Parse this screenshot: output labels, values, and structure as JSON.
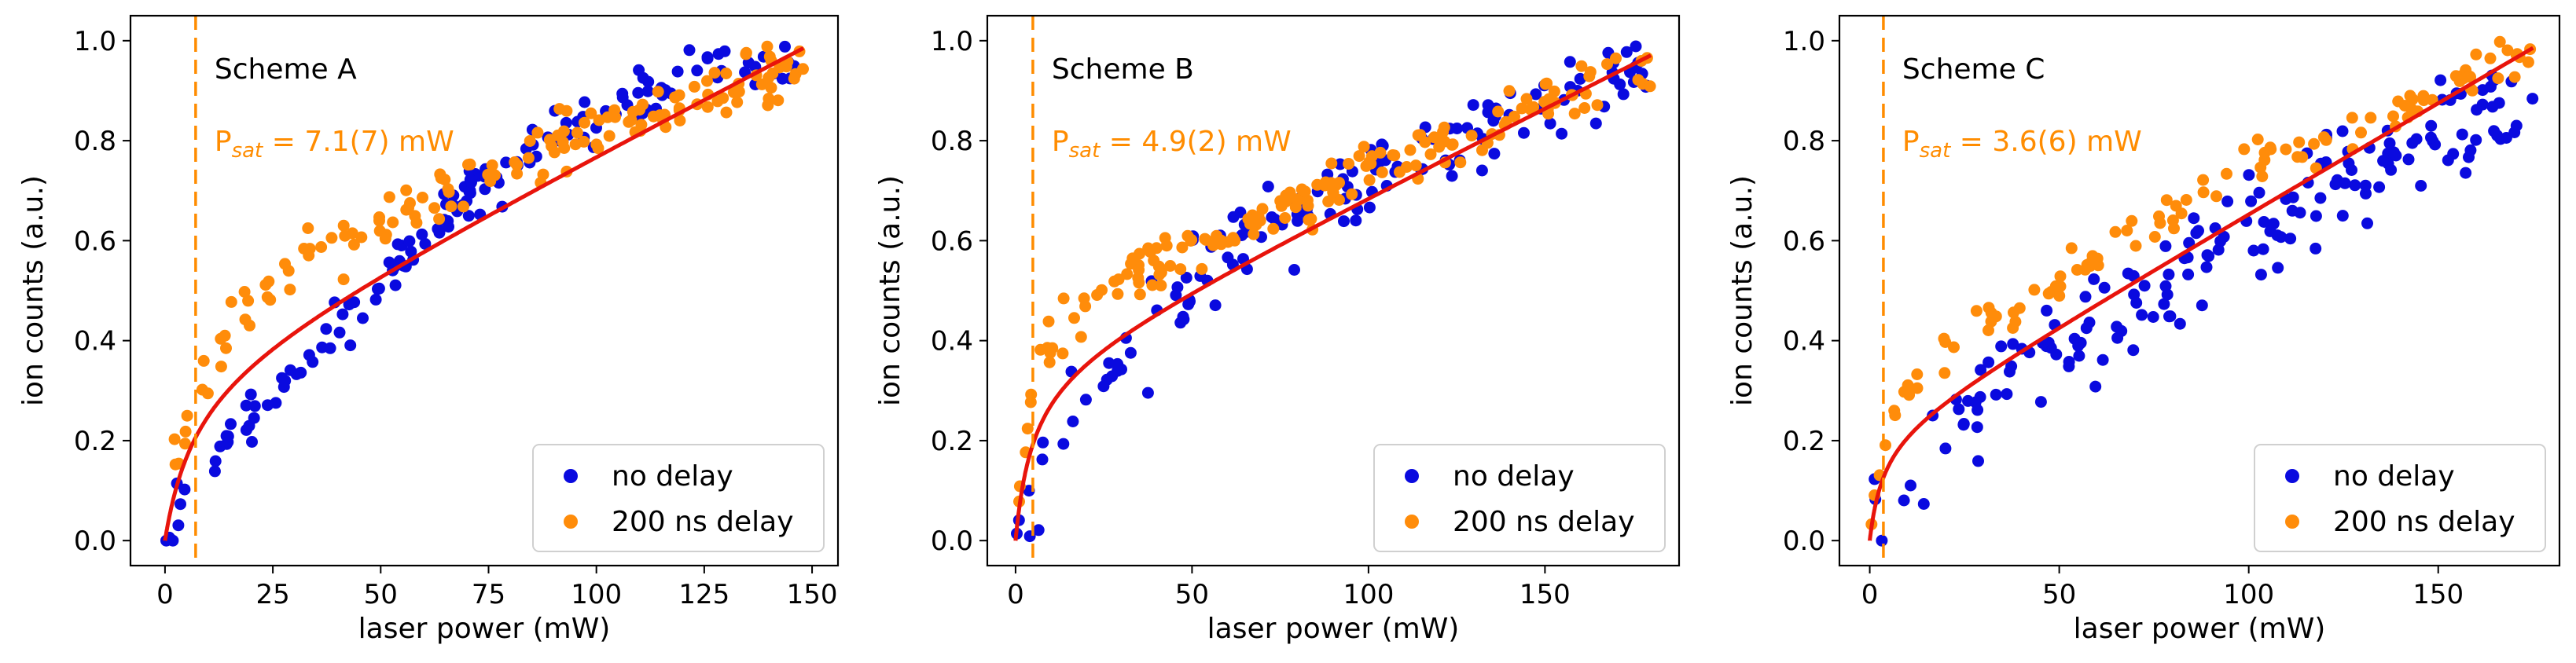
{
  "colors": {
    "no_delay": "#0a0adf",
    "delay": "#ff8c0a",
    "fit": "#e8140c",
    "psat_line": "#ff8c00"
  },
  "chart_data": [
    {
      "type": "scatter",
      "title": "Scheme A",
      "annotation": {
        "prefix": "P",
        "subscript": "sat",
        "value": " = 7.1(7) mW",
        "psat": 7.1
      },
      "xlabel": "laser power (mW)",
      "ylabel": "ion counts (a.u.)",
      "xlim": [
        -8,
        156
      ],
      "ylim": [
        -0.05,
        1.05
      ],
      "xticks": [
        0,
        25,
        50,
        75,
        100,
        125,
        150
      ],
      "xtick_labels": [
        "0",
        "25",
        "50",
        "75",
        "100",
        "125",
        "150"
      ],
      "yticks": [
        0.0,
        0.2,
        0.4,
        0.6,
        0.8,
        1.0
      ],
      "ytick_labels": [
        "0.0",
        "0.2",
        "0.4",
        "0.6",
        "0.8",
        "1.0"
      ],
      "x_max": 148,
      "series": [
        {
          "name": "no delay",
          "anchors": [
            [
              0,
              0
            ],
            [
              2,
              0.05
            ],
            [
              10,
              0.16
            ],
            [
              25,
              0.3
            ],
            [
              40,
              0.43
            ],
            [
              55,
              0.57
            ],
            [
              70,
              0.69
            ],
            [
              90,
              0.81
            ],
            [
              110,
              0.88
            ],
            [
              125,
              0.96
            ],
            [
              140,
              0.95
            ]
          ],
          "noise": 0.025,
          "n": 150,
          "seed": 11
        },
        {
          "name": "200 ns delay",
          "anchors": [
            [
              0,
              0
            ],
            [
              2,
              0.15
            ],
            [
              7,
              0.31
            ],
            [
              15,
              0.42
            ],
            [
              30,
              0.55
            ],
            [
              50,
              0.64
            ],
            [
              75,
              0.73
            ],
            [
              100,
              0.83
            ],
            [
              125,
              0.9
            ],
            [
              148,
              0.95
            ]
          ],
          "noise": 0.03,
          "n": 150,
          "seed": 23
        }
      ],
      "fit": {
        "name": "fit",
        "psat": 7.1,
        "a": 0.35,
        "b": 0.0044
      },
      "legend": [
        "no delay",
        "200 ns delay"
      ]
    },
    {
      "type": "scatter",
      "title": "Scheme B",
      "annotation": {
        "prefix": "P",
        "subscript": "sat",
        "value": " = 4.9(2) mW",
        "psat": 4.9
      },
      "xlabel": "laser power (mW)",
      "ylabel": "ion counts (a.u.)",
      "xlim": [
        -8,
        188
      ],
      "ylim": [
        -0.05,
        1.05
      ],
      "xticks": [
        0,
        50,
        100,
        150
      ],
      "xtick_labels": [
        "0",
        "50",
        "100",
        "150"
      ],
      "yticks": [
        0.0,
        0.2,
        0.4,
        0.6,
        0.8,
        1.0
      ],
      "ytick_labels": [
        "0.0",
        "0.2",
        "0.4",
        "0.6",
        "0.8",
        "1.0"
      ],
      "x_max": 180,
      "series": [
        {
          "name": "no delay",
          "anchors": [
            [
              0,
              0
            ],
            [
              3,
              0.07
            ],
            [
              10,
              0.15
            ],
            [
              20,
              0.3
            ],
            [
              40,
              0.43
            ],
            [
              60,
              0.58
            ],
            [
              80,
              0.64
            ],
            [
              100,
              0.72
            ],
            [
              120,
              0.78
            ],
            [
              140,
              0.84
            ],
            [
              160,
              0.9
            ],
            [
              170,
              0.93
            ]
          ],
          "noise": 0.045,
          "n": 140,
          "seed": 37
        },
        {
          "name": "200 ns delay",
          "anchors": [
            [
              0,
              0
            ],
            [
              2,
              0.16
            ],
            [
              5,
              0.3
            ],
            [
              10,
              0.39
            ],
            [
              20,
              0.47
            ],
            [
              40,
              0.56
            ],
            [
              60,
              0.62
            ],
            [
              80,
              0.67
            ],
            [
              100,
              0.74
            ],
            [
              125,
              0.81
            ],
            [
              150,
              0.88
            ],
            [
              180,
              0.94
            ]
          ],
          "noise": 0.025,
          "n": 170,
          "seed": 51
        }
      ],
      "fit": {
        "name": "fit",
        "psat": 4.9,
        "a": 0.35,
        "b": 0.0035
      },
      "legend": [
        "no delay",
        "200 ns delay"
      ]
    },
    {
      "type": "scatter",
      "title": "Scheme C",
      "annotation": {
        "prefix": "P",
        "subscript": "sat",
        "value": " = 3.6(6) mW",
        "psat": 3.6
      },
      "xlabel": "laser power (mW)",
      "ylabel": "ion counts (a.u.)",
      "xlim": [
        -8,
        182
      ],
      "ylim": [
        -0.05,
        1.05
      ],
      "xticks": [
        0,
        50,
        100,
        150
      ],
      "xtick_labels": [
        "0",
        "50",
        "100",
        "150"
      ],
      "yticks": [
        0.0,
        0.2,
        0.4,
        0.6,
        0.8,
        1.0
      ],
      "ytick_labels": [
        "0.0",
        "0.2",
        "0.4",
        "0.6",
        "0.8",
        "1.0"
      ],
      "x_max": 175,
      "series": [
        {
          "name": "no delay",
          "anchors": [
            [
              0,
              0
            ],
            [
              5,
              0.07
            ],
            [
              15,
              0.17
            ],
            [
              30,
              0.3
            ],
            [
              50,
              0.4
            ],
            [
              70,
              0.47
            ],
            [
              90,
              0.56
            ],
            [
              110,
              0.65
            ],
            [
              130,
              0.73
            ],
            [
              150,
              0.83
            ],
            [
              165,
              0.86
            ]
          ],
          "noise": 0.05,
          "n": 170,
          "seed": 73
        },
        {
          "name": "200 ns delay",
          "anchors": [
            [
              0,
              0
            ],
            [
              2,
              0.15
            ],
            [
              5,
              0.25
            ],
            [
              10,
              0.3
            ],
            [
              20,
              0.38
            ],
            [
              40,
              0.47
            ],
            [
              60,
              0.57
            ],
            [
              80,
              0.67
            ],
            [
              100,
              0.75
            ],
            [
              120,
              0.8
            ],
            [
              150,
              0.9
            ],
            [
              175,
              0.99
            ]
          ],
          "noise": 0.025,
          "n": 110,
          "seed": 89
        }
      ],
      "fit": {
        "name": "fit",
        "psat": 3.6,
        "a": 0.22,
        "b": 0.0044
      },
      "legend": [
        "no delay",
        "200 ns delay"
      ]
    }
  ]
}
